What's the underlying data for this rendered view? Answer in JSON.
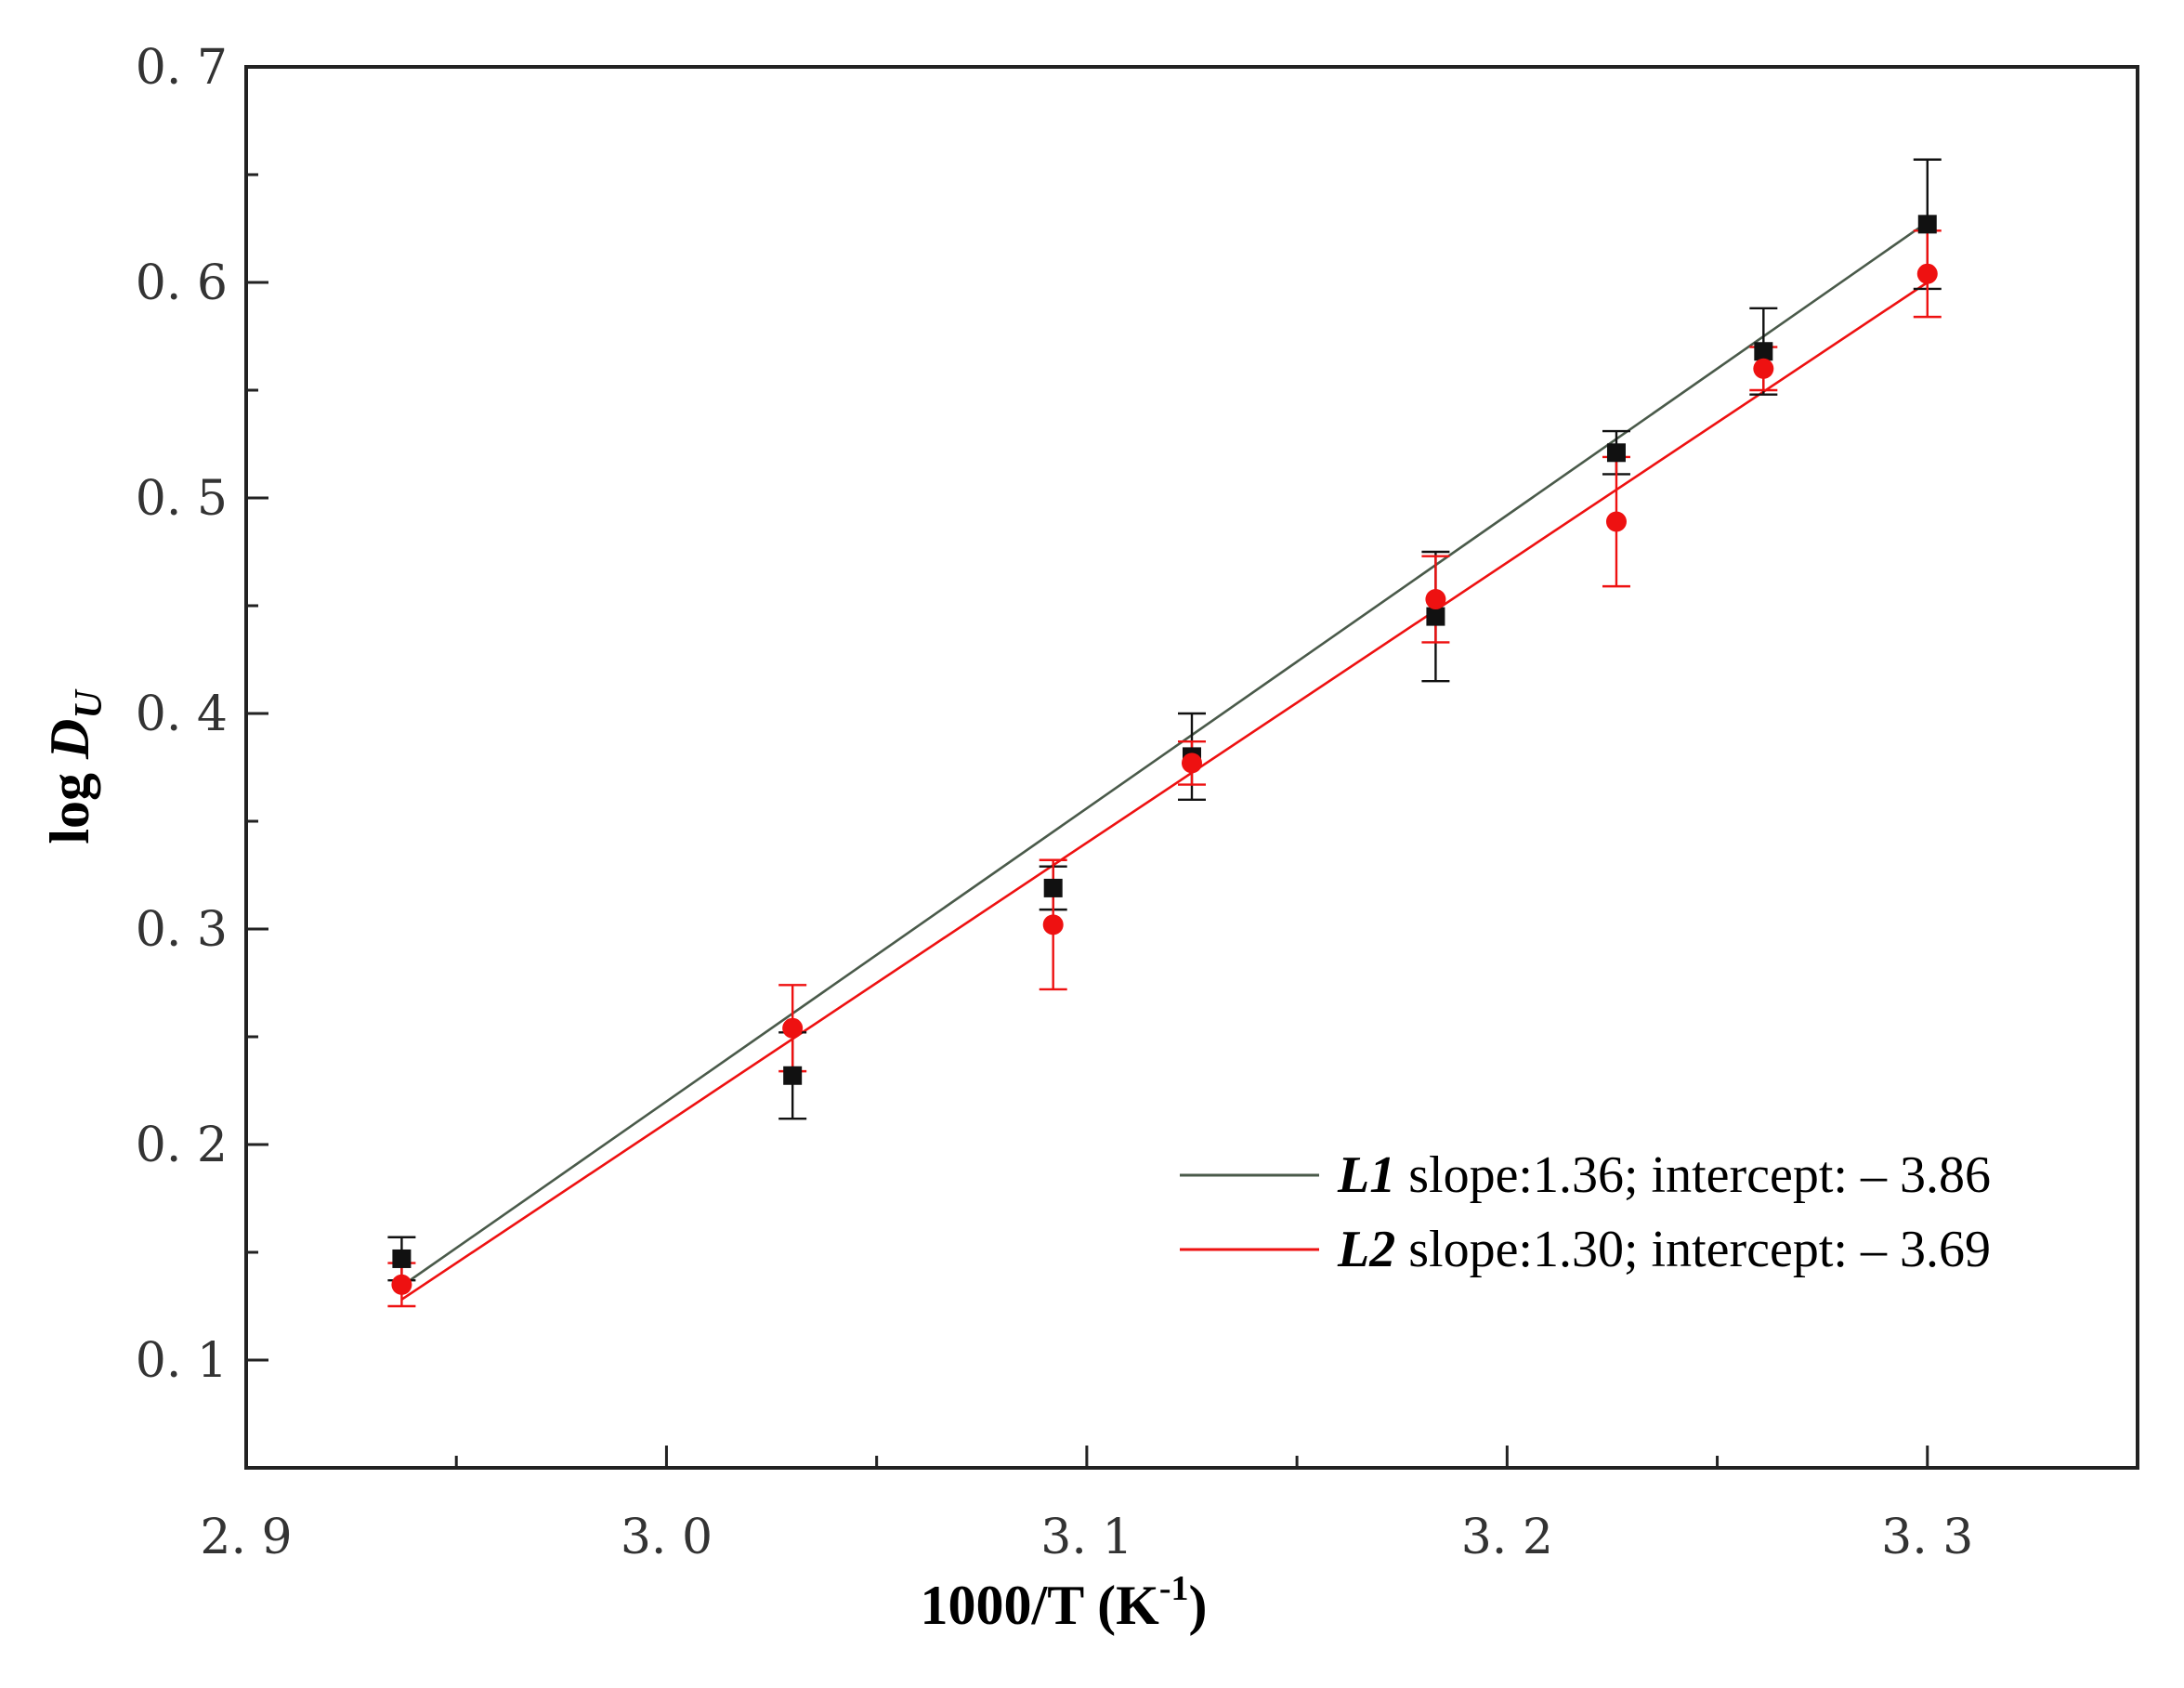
{
  "chart_data": {
    "type": "scatter",
    "xlabel": "1000/T (K",
    "xlabel_sup": "-1",
    "xlabel_close": ")",
    "ylabel": "log ",
    "ylabel_var": "D",
    "ylabel_sub": "U",
    "xlim": [
      2.9,
      3.35
    ],
    "ylim": [
      0.05,
      0.7
    ],
    "x_ticks": [
      {
        "value": 2.9,
        "label": "2. 9"
      },
      {
        "value": 3.0,
        "label": "3. 0"
      },
      {
        "value": 3.1,
        "label": "3. 1"
      },
      {
        "value": 3.2,
        "label": "3. 2"
      },
      {
        "value": 3.3,
        "label": "3. 3"
      }
    ],
    "x_minor_ticks": [
      2.95,
      3.05,
      3.15,
      3.25
    ],
    "y_ticks": [
      {
        "value": 0.1,
        "label": "0. 1"
      },
      {
        "value": 0.2,
        "label": "0. 2"
      },
      {
        "value": 0.3,
        "label": "0. 3"
      },
      {
        "value": 0.4,
        "label": "0. 4"
      },
      {
        "value": 0.5,
        "label": "0. 5"
      },
      {
        "value": 0.6,
        "label": "0. 6"
      },
      {
        "value": 0.7,
        "label": "0. 7"
      }
    ],
    "y_minor_ticks": [
      0.15,
      0.25,
      0.35,
      0.45,
      0.55,
      0.65
    ],
    "grid": false,
    "legend_position": "bottom-right",
    "series": [
      {
        "name": "L1",
        "legend_text": " slope:1.36; intercept: – 3.86",
        "color": "#111111",
        "line_color": "#4a5a4a",
        "marker": "square",
        "x": [
          2.937,
          3.03,
          3.092,
          3.125,
          3.183,
          3.226,
          3.261,
          3.3
        ],
        "y": [
          0.147,
          0.232,
          0.319,
          0.38,
          0.445,
          0.521,
          0.568,
          0.627
        ],
        "error": [
          0.01,
          0.02,
          0.01,
          0.02,
          0.03,
          0.01,
          0.02,
          0.03
        ],
        "fit": {
          "slope": 1.36,
          "intercept": -3.86
        }
      },
      {
        "name": "L2",
        "legend_text": " slope:1.30; intercept: – 3.69",
        "color": "#ee1111",
        "line_color": "#ee1111",
        "marker": "circle",
        "x": [
          2.937,
          3.03,
          3.092,
          3.125,
          3.183,
          3.226,
          3.261,
          3.3
        ],
        "y": [
          0.135,
          0.254,
          0.302,
          0.377,
          0.453,
          0.489,
          0.56,
          0.604
        ],
        "error": [
          0.01,
          0.02,
          0.03,
          0.01,
          0.02,
          0.03,
          0.01,
          0.02
        ],
        "fit": {
          "slope": 1.3,
          "intercept": -3.69
        }
      }
    ]
  }
}
